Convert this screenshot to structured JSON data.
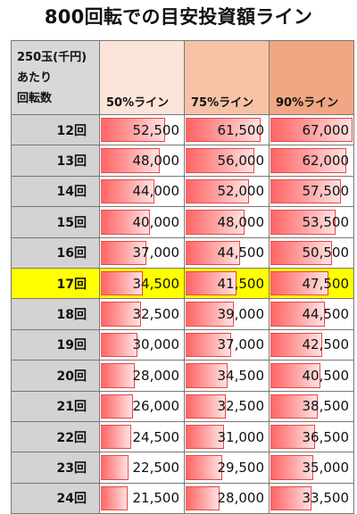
{
  "title": "800回転での目安投資額ライン",
  "header": {
    "row_label": [
      "250玉(千円)",
      "あたり",
      "回転数"
    ],
    "columns": [
      "50%ライン",
      "75%ライン",
      "90%ライン"
    ],
    "column_colors": [
      "#fde4d8",
      "#f6c3a6",
      "#f1a783"
    ]
  },
  "highlight_color": "#ffff00",
  "bar_color": "#ff6363",
  "chart_data": {
    "type": "table",
    "title": "800回転での目安投資額ライン",
    "categories": [
      "12回",
      "13回",
      "14回",
      "15回",
      "16回",
      "17回",
      "18回",
      "19回",
      "20回",
      "21回",
      "22回",
      "23回",
      "24回"
    ],
    "series": [
      {
        "name": "50%ライン",
        "values": [
          52500,
          48000,
          44000,
          40000,
          37000,
          34500,
          32500,
          30000,
          28000,
          26000,
          24500,
          22500,
          21500
        ]
      },
      {
        "name": "75%ライン",
        "values": [
          61500,
          56000,
          52000,
          48000,
          44500,
          41500,
          39000,
          37000,
          34500,
          32500,
          31000,
          29500,
          28000
        ]
      },
      {
        "name": "90%ライン",
        "values": [
          67000,
          62000,
          57500,
          53500,
          50500,
          47500,
          44500,
          42500,
          40500,
          38500,
          36500,
          35000,
          33500
        ]
      }
    ],
    "highlight_category": "17回",
    "bar_max": 67000
  }
}
